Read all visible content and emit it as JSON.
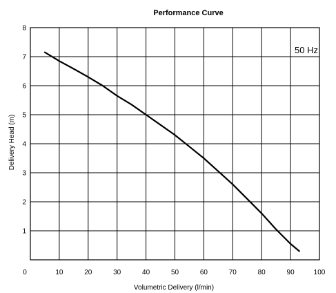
{
  "chart_data": {
    "type": "line",
    "title": "Performance Curve",
    "xlabel": "Volumetric Delivery (l/min)",
    "ylabel": "Delivery Head (m)",
    "xlim": [
      0,
      100
    ],
    "ylim": [
      0,
      8
    ],
    "xticks": [
      0,
      10,
      20,
      30,
      40,
      50,
      60,
      70,
      80,
      90,
      100
    ],
    "yticks": [
      1,
      2,
      3,
      4,
      5,
      6,
      7,
      8
    ],
    "grid": true,
    "annotation": "50 Hz",
    "series": [
      {
        "x": [
          5,
          10,
          15,
          20,
          25,
          30,
          35,
          40,
          45,
          50,
          55,
          60,
          65,
          70,
          75,
          80,
          85,
          90,
          93
        ],
        "y": [
          7.15,
          6.85,
          6.58,
          6.3,
          6.0,
          5.65,
          5.35,
          5.0,
          4.65,
          4.3,
          3.9,
          3.5,
          3.05,
          2.6,
          2.1,
          1.6,
          1.05,
          0.55,
          0.3
        ],
        "color": "#000000"
      }
    ]
  }
}
